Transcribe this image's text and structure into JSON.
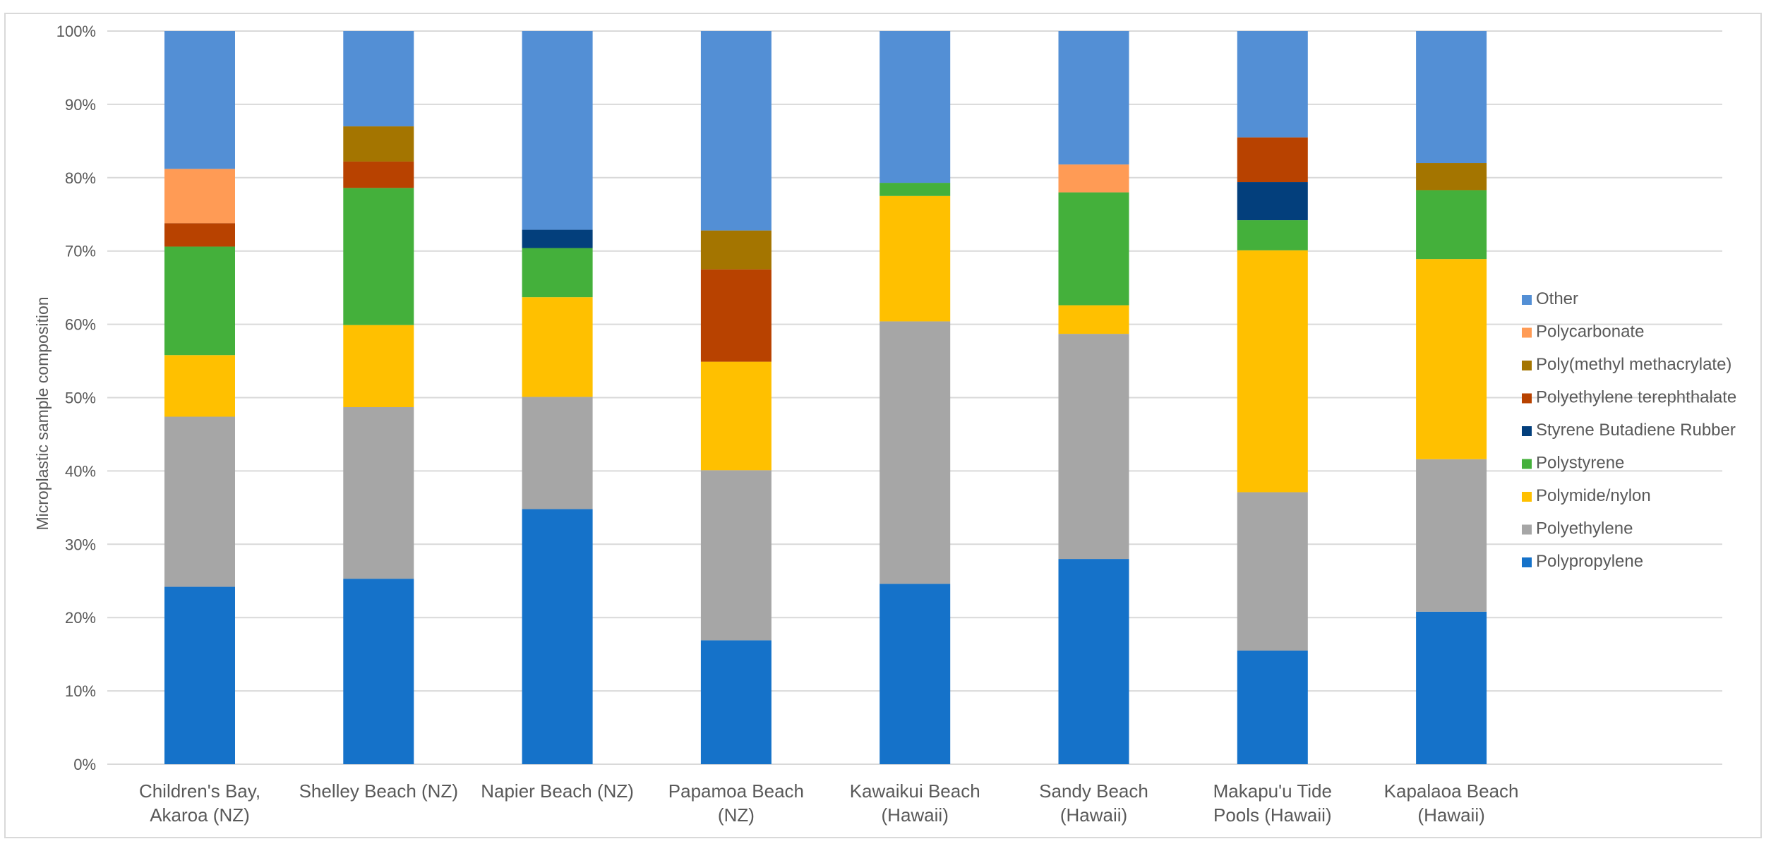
{
  "chart_data": {
    "type": "stacked-bar-100",
    "ylabel": "Microplastic sample composition",
    "ylim": [
      0,
      100
    ],
    "y_ticks": [
      "0%",
      "10%",
      "20%",
      "30%",
      "40%",
      "50%",
      "60%",
      "70%",
      "80%",
      "90%",
      "100%"
    ],
    "grid": true,
    "legend_position": "right",
    "categories": [
      [
        "Children's Bay,",
        "Akaroa (NZ)"
      ],
      [
        "Shelley Beach (NZ)"
      ],
      [
        "Napier Beach (NZ)"
      ],
      [
        "Papamoa Beach",
        "(NZ)"
      ],
      [
        "Kawaikui Beach",
        "(Hawaii)"
      ],
      [
        "Sandy Beach",
        "(Hawaii)"
      ],
      [
        "Makapu'u Tide",
        "Pools (Hawaii)"
      ],
      [
        "Kapalaoa Beach",
        "(Hawaii)"
      ]
    ],
    "series": [
      {
        "name": "Polypropylene",
        "color": "#1572C9",
        "values": [
          24.2,
          25.3,
          34.8,
          16.9,
          24.6,
          28.0,
          15.5,
          20.8
        ]
      },
      {
        "name": "Polyethylene",
        "color": "#A6A6A6",
        "values": [
          23.2,
          23.4,
          15.3,
          23.2,
          35.8,
          30.7,
          21.6,
          20.8
        ]
      },
      {
        "name": "Polymide/nylon",
        "color": "#FFC000",
        "values": [
          8.4,
          11.2,
          13.6,
          14.8,
          17.1,
          3.9,
          33.0,
          27.3
        ]
      },
      {
        "name": "Polystyrene",
        "color": "#44B03B",
        "values": [
          14.8,
          18.7,
          6.7,
          0,
          1.8,
          15.4,
          4.1,
          9.4
        ]
      },
      {
        "name": "Styrene Butadiene Rubber",
        "color": "#033F7C",
        "values": [
          0,
          0,
          2.5,
          0,
          0,
          0,
          5.2,
          0
        ]
      },
      {
        "name": "Polyethylene terephthalate",
        "color": "#B84200",
        "values": [
          3.2,
          3.6,
          0,
          12.6,
          0,
          0,
          6.1,
          0
        ]
      },
      {
        "name": "Poly(methyl methacrylate)",
        "color": "#A47500",
        "values": [
          0,
          4.8,
          0,
          5.3,
          0,
          0,
          0,
          3.7
        ]
      },
      {
        "name": "Polycarbonate",
        "color": "#FF9B55",
        "values": [
          7.4,
          0,
          0,
          0,
          0,
          3.8,
          0,
          0
        ]
      },
      {
        "name": "Other",
        "color": "#538FD5",
        "values": [
          18.8,
          13.0,
          27.1,
          27.2,
          20.7,
          18.2,
          14.5,
          18.0
        ]
      }
    ]
  }
}
